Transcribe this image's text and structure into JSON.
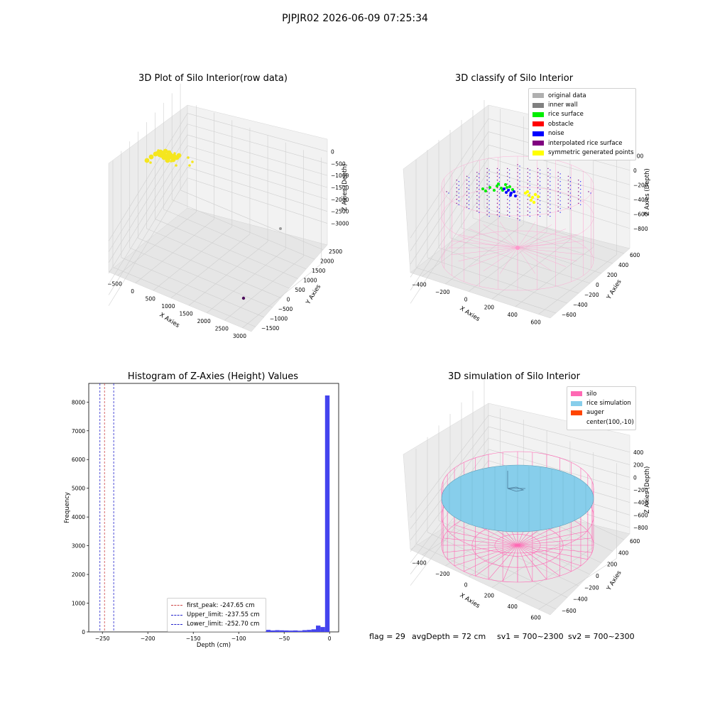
{
  "suptitle": "PJPJR02 2026-06-09 07:25:34",
  "footer": {
    "flag": "flag = 29",
    "avg_depth": "avgDepth = 72 cm",
    "sv1": "sv1 = 700~2300",
    "sv2": "sv2 = 700~2300"
  },
  "chart_data": [
    {
      "type": "scatter",
      "title": "3D Plot of Silo Interior(row data)",
      "xlabel": "X Axies",
      "ylabel": "Y Axies",
      "zlabel": "Z Axies (Depth)",
      "x_ticks": [
        "−500",
        "0",
        "500",
        "1000",
        "1500",
        "2000",
        "2500",
        "3000"
      ],
      "y_ticks": [
        "−1500",
        "−1000",
        "−500",
        "0",
        "500",
        "1000",
        "1500",
        "2000",
        "2500"
      ],
      "z_ticks": [
        "0",
        "−500",
        "−1000",
        "−1500",
        "−2000",
        "−2500",
        "−3000"
      ],
      "point_color": "#f5e61e",
      "outlier_colors": [
        "#9a9a9a",
        "#4b0b5a"
      ]
    },
    {
      "type": "scatter",
      "title": "3D classify of Silo Interior",
      "xlabel": "X Axies",
      "ylabel": "Y Axies",
      "zlabel": "Z Axies (Depth)",
      "x_ticks": [
        "−400",
        "−200",
        "0",
        "200",
        "400",
        "600"
      ],
      "y_ticks": [
        "−600",
        "−400",
        "−200",
        "0",
        "200",
        "400",
        "600"
      ],
      "z_ticks": [
        "200",
        "0",
        "−200",
        "−400",
        "−600",
        "−800"
      ],
      "z_top_tick_partial": "00",
      "legend": [
        {
          "label": "original data",
          "color": "#b0b0b0"
        },
        {
          "label": "inner wall",
          "color": "#808080"
        },
        {
          "label": "rice surface",
          "color": "#00ee00"
        },
        {
          "label": "obstacle",
          "color": "#ff0000"
        },
        {
          "label": "noise",
          "color": "#0000ff"
        },
        {
          "label": "interpolated rice surface",
          "color": "#800080"
        },
        {
          "label": "symmetric generated points",
          "color": "#ffff00"
        }
      ]
    },
    {
      "type": "bar",
      "title": "Histogram of Z-Axies (Height) Values",
      "xlabel": "Depth (cm)",
      "ylabel": "Frequency",
      "xlim": [
        -265,
        10
      ],
      "ylim": [
        0,
        8650
      ],
      "x_ticks": [
        -250,
        -200,
        -150,
        -100,
        -50,
        0
      ],
      "x_tick_labels": [
        "−250",
        "−200",
        "−150",
        "−100",
        "−50",
        "0"
      ],
      "y_ticks": [
        0,
        1000,
        2000,
        3000,
        4000,
        5000,
        6000,
        7000,
        8000
      ],
      "bar_color": "#4444ee",
      "bin_width": 5,
      "bins": [
        {
          "x": -95,
          "value": 15
        },
        {
          "x": -90,
          "value": 20
        },
        {
          "x": -85,
          "value": 30
        },
        {
          "x": -80,
          "value": 60
        },
        {
          "x": -75,
          "value": 80
        },
        {
          "x": -70,
          "value": 70
        },
        {
          "x": -65,
          "value": 50
        },
        {
          "x": -60,
          "value": 60
        },
        {
          "x": -55,
          "value": 55
        },
        {
          "x": -50,
          "value": 50
        },
        {
          "x": -45,
          "value": 45
        },
        {
          "x": -40,
          "value": 50
        },
        {
          "x": -35,
          "value": 40
        },
        {
          "x": -30,
          "value": 60
        },
        {
          "x": -25,
          "value": 70
        },
        {
          "x": -20,
          "value": 90
        },
        {
          "x": -15,
          "value": 220
        },
        {
          "x": -10,
          "value": 170
        },
        {
          "x": -5,
          "value": 8230
        }
      ],
      "vlines": [
        {
          "label": "first_peak: -247.65 cm",
          "x": -247.65,
          "color": "#cc4444"
        },
        {
          "label": "Upper_limit: -237.55 cm",
          "x": -237.55,
          "color": "#2222cc"
        },
        {
          "label": "Lower_limit: -252.70 cm",
          "x": -252.7,
          "color": "#2222cc"
        }
      ]
    },
    {
      "type": "surface",
      "title": "3D simulation of Silo Interior",
      "xlabel": "X Axies",
      "ylabel": "Y Axies",
      "zlabel": "Z Axies (Depth)",
      "x_ticks": [
        "−400",
        "−200",
        "0",
        "200",
        "400",
        "600"
      ],
      "y_ticks": [
        "−600",
        "−400",
        "−200",
        "0",
        "200",
        "400",
        "600"
      ],
      "z_ticks": [
        "400",
        "200",
        "0",
        "−200",
        "−400",
        "−600",
        "−800"
      ],
      "legend": [
        {
          "label": "silo",
          "color": "#ff69b4"
        },
        {
          "label": "rice simulation",
          "color": "#87ceeb"
        },
        {
          "label": "auger",
          "color": "#ff4500"
        },
        {
          "label": "center(100,-10)",
          "color": null
        }
      ]
    }
  ]
}
